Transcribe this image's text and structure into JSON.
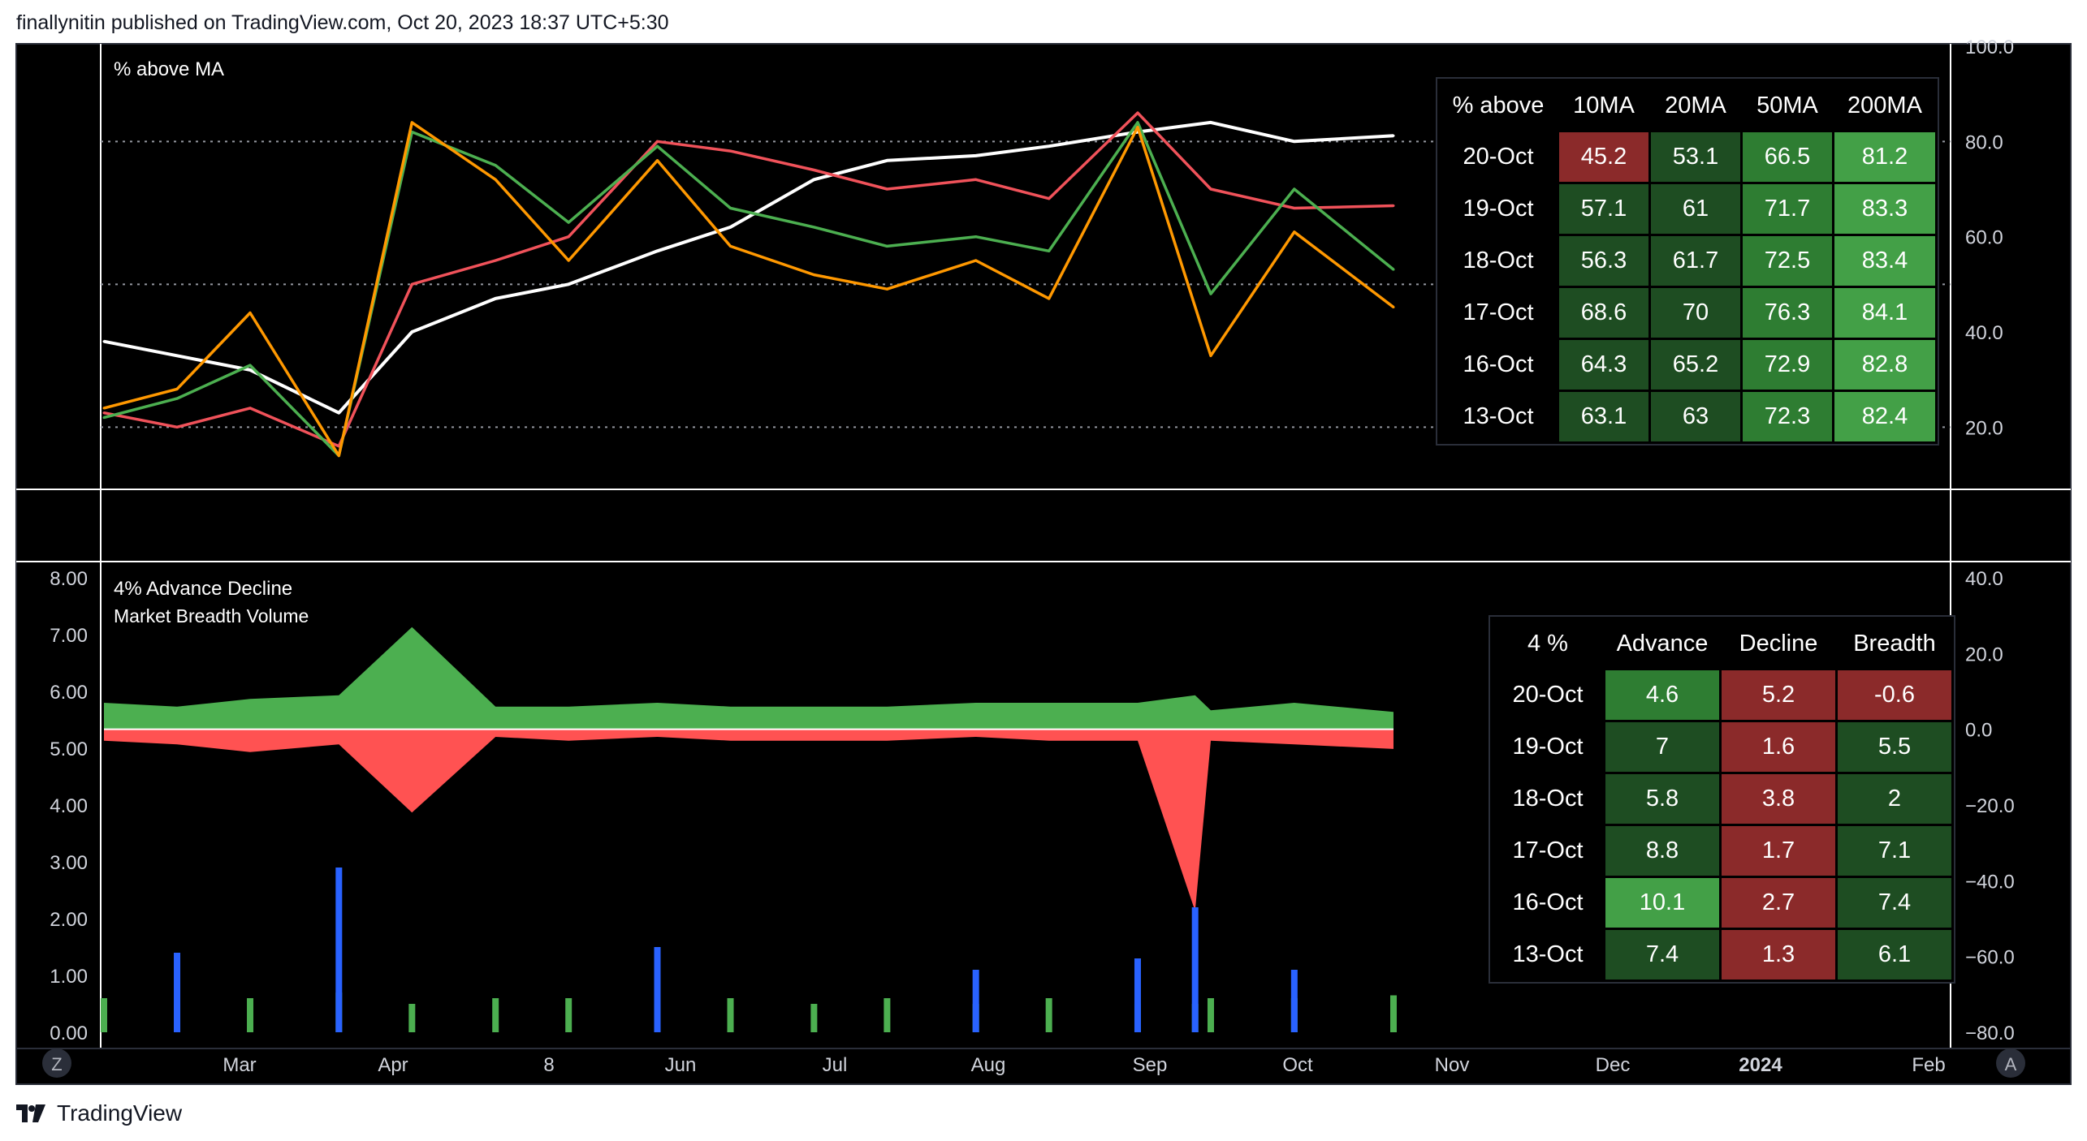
{
  "header": {
    "text": "finallynitin published on TradingView.com, Oct 20, 2023 18:37 UTC+5:30"
  },
  "footer": {
    "brand": "TradingView",
    "logo_icon": "tradingview-logo-icon"
  },
  "colors": {
    "background": "#000000",
    "white_line": "#ffffff",
    "red_line": "#f0525a",
    "green_line": "#4caf50",
    "orange_line": "#ff9800",
    "advance_area": "#4caf50",
    "decline_area": "#ff5252",
    "volume_blue": "#2962ff",
    "volume_green": "#4caf50",
    "volume_orange": "#ff9800",
    "volume_gray": "#787b86",
    "cell_red": "#8b2a2a",
    "cell_dark_green": "#1e4d22",
    "cell_mid_green": "#2e7d32",
    "cell_light_green": "#43a047"
  },
  "time_axis": {
    "labels": [
      "Mar",
      "Apr",
      "8",
      "Jun",
      "Jul",
      "Aug",
      "Sep",
      "Oct",
      "Nov",
      "Dec",
      "2024",
      "Feb"
    ],
    "bold_label": "2024",
    "left_button": "Z",
    "right_button": "A"
  },
  "chart_data": [
    {
      "type": "line",
      "title": "% above MA",
      "y_axis_ticks": [
        "100.0",
        "80.0",
        "60.0",
        "40.0",
        "20.0"
      ],
      "ylim": [
        10,
        100
      ],
      "reference_lines": [
        20,
        50,
        80
      ],
      "x": [
        "Feb-15",
        "Mar-01",
        "Mar-15",
        "Apr-01",
        "Apr-15",
        "May-01",
        "May-15",
        "Jun-01",
        "Jun-15",
        "Jul-01",
        "Jul-15",
        "Aug-01",
        "Aug-15",
        "Sep-01",
        "Sep-15",
        "Oct-01",
        "Oct-20"
      ],
      "series": [
        {
          "color": "white",
          "values": [
            38,
            35,
            32,
            23,
            40,
            47,
            50,
            57,
            62,
            72,
            76,
            77,
            79,
            82,
            84,
            80,
            81.2
          ]
        },
        {
          "color": "red",
          "values": [
            23,
            20,
            24,
            16,
            50,
            55,
            60,
            80,
            78,
            74,
            70,
            72,
            68,
            86,
            70,
            66,
            66.5
          ]
        },
        {
          "color": "green",
          "values": [
            22,
            26,
            33,
            14,
            82,
            75,
            63,
            79,
            66,
            62,
            58,
            60,
            57,
            84,
            48,
            70,
            53.1
          ]
        },
        {
          "color": "orange",
          "values": [
            24,
            28,
            44,
            14,
            84,
            72,
            55,
            76,
            58,
            52,
            49,
            55,
            47,
            83,
            35,
            61,
            45.2
          ]
        }
      ],
      "table": {
        "headers": [
          "% above",
          "10MA",
          "20MA",
          "50MA",
          "200MA"
        ],
        "rows": [
          {
            "date": "20-Oct",
            "cells": [
              {
                "value": "45.2",
                "color": "#8b2a2a"
              },
              {
                "value": "53.1",
                "color": "#1e4d22"
              },
              {
                "value": "66.5",
                "color": "#2e7d32"
              },
              {
                "value": "81.2",
                "color": "#43a047"
              }
            ]
          },
          {
            "date": "19-Oct",
            "cells": [
              {
                "value": "57.1",
                "color": "#1e4d22"
              },
              {
                "value": "61",
                "color": "#1e4d22"
              },
              {
                "value": "71.7",
                "color": "#2e7d32"
              },
              {
                "value": "83.3",
                "color": "#43a047"
              }
            ]
          },
          {
            "date": "18-Oct",
            "cells": [
              {
                "value": "56.3",
                "color": "#1e4d22"
              },
              {
                "value": "61.7",
                "color": "#1e4d22"
              },
              {
                "value": "72.5",
                "color": "#2e7d32"
              },
              {
                "value": "83.4",
                "color": "#43a047"
              }
            ]
          },
          {
            "date": "17-Oct",
            "cells": [
              {
                "value": "68.6",
                "color": "#1e4d22"
              },
              {
                "value": "70",
                "color": "#1e4d22"
              },
              {
                "value": "76.3",
                "color": "#2e7d32"
              },
              {
                "value": "84.1",
                "color": "#43a047"
              }
            ]
          },
          {
            "date": "16-Oct",
            "cells": [
              {
                "value": "64.3",
                "color": "#1e4d22"
              },
              {
                "value": "65.2",
                "color": "#1e4d22"
              },
              {
                "value": "72.9",
                "color": "#2e7d32"
              },
              {
                "value": "82.8",
                "color": "#43a047"
              }
            ]
          },
          {
            "date": "13-Oct",
            "cells": [
              {
                "value": "63.1",
                "color": "#1e4d22"
              },
              {
                "value": "63",
                "color": "#1e4d22"
              },
              {
                "value": "72.3",
                "color": "#2e7d32"
              },
              {
                "value": "82.4",
                "color": "#43a047"
              }
            ]
          }
        ]
      }
    },
    {
      "type": "area",
      "title": "4% Advance Decline",
      "subtitle": "Market Breadth Volume",
      "left_axis_ticks": [
        "8.00",
        "7.00",
        "6.00",
        "5.00",
        "4.00",
        "3.00",
        "2.00",
        "1.00",
        "0.00"
      ],
      "left_ylim": [
        0,
        8
      ],
      "right_axis_ticks": [
        "40.0",
        "20.0",
        "0.0",
        "−20.0",
        "−40.0",
        "−60.0",
        "−80.0"
      ],
      "right_ylim": [
        -80,
        40
      ],
      "x": [
        "Feb-15",
        "Mar-01",
        "Mar-15",
        "Apr-01",
        "Apr-15",
        "May-01",
        "May-15",
        "Jun-01",
        "Jun-15",
        "Jul-01",
        "Jul-15",
        "Aug-01",
        "Aug-15",
        "Sep-01",
        "Sep-12",
        "Sep-15",
        "Oct-01",
        "Oct-20"
      ],
      "advance": [
        7,
        6,
        8,
        9,
        27,
        6,
        6,
        7,
        6,
        6,
        6,
        7,
        7,
        7,
        9,
        5,
        7,
        4.6
      ],
      "decline": [
        3,
        4,
        6,
        4,
        22,
        2,
        3,
        2,
        3,
        3,
        3,
        2,
        3,
        3,
        48,
        3,
        4,
        5.2
      ],
      "volume_series": [
        {
          "color": "green",
          "values": [
            0.6,
            0.5,
            0.6,
            0.7,
            0.5,
            0.6,
            0.6,
            0.5,
            0.6,
            0.5,
            0.6,
            0.5,
            0.6,
            0.5,
            0.5,
            0.6,
            0.6,
            0.65
          ]
        },
        {
          "color": "blue",
          "values": [
            0.0,
            1.4,
            0.0,
            2.9,
            0.0,
            0.0,
            0.0,
            1.5,
            0.0,
            0.0,
            0.0,
            1.1,
            0.0,
            1.3,
            2.2,
            0.0,
            1.1,
            0.0
          ]
        }
      ],
      "table": {
        "headers": [
          "4 %",
          "Advance",
          "Decline",
          "Breadth"
        ],
        "rows": [
          {
            "date": "20-Oct",
            "cells": [
              {
                "value": "4.6",
                "color": "#2e7d32"
              },
              {
                "value": "5.2",
                "color": "#8b2a2a"
              },
              {
                "value": "-0.6",
                "color": "#8b2a2a"
              }
            ]
          },
          {
            "date": "19-Oct",
            "cells": [
              {
                "value": "7",
                "color": "#1e4d22"
              },
              {
                "value": "1.6",
                "color": "#8b2a2a"
              },
              {
                "value": "5.5",
                "color": "#1e4d22"
              }
            ]
          },
          {
            "date": "18-Oct",
            "cells": [
              {
                "value": "5.8",
                "color": "#1e4d22"
              },
              {
                "value": "3.8",
                "color": "#8b2a2a"
              },
              {
                "value": "2",
                "color": "#1e4d22"
              }
            ]
          },
          {
            "date": "17-Oct",
            "cells": [
              {
                "value": "8.8",
                "color": "#1e4d22"
              },
              {
                "value": "1.7",
                "color": "#8b2a2a"
              },
              {
                "value": "7.1",
                "color": "#1e4d22"
              }
            ]
          },
          {
            "date": "16-Oct",
            "cells": [
              {
                "value": "10.1",
                "color": "#43a047"
              },
              {
                "value": "2.7",
                "color": "#8b2a2a"
              },
              {
                "value": "7.4",
                "color": "#1e4d22"
              }
            ]
          },
          {
            "date": "13-Oct",
            "cells": [
              {
                "value": "7.4",
                "color": "#1e4d22"
              },
              {
                "value": "1.3",
                "color": "#8b2a2a"
              },
              {
                "value": "6.1",
                "color": "#1e4d22"
              }
            ]
          }
        ]
      }
    }
  ]
}
